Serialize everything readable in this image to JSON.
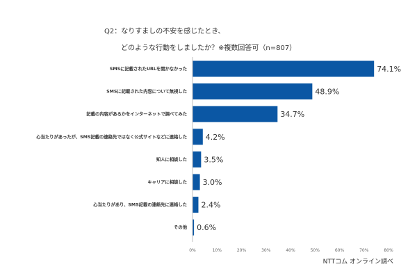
{
  "chart_data": {
    "type": "bar",
    "orientation": "horizontal",
    "title_lines": [
      "Q2：なりすましの不安を感じたとき、",
      "どのような行動をしましたか？※複数回答可（n=807）"
    ],
    "categories": [
      "SMSに記載されたURLを開かなかった",
      "SMSに記載された内容について無視した",
      "記載の内容があるかをインターネットで調べてみた",
      "心当たりがあったが、SMS記載の連絡先ではなく公式サイトなどに連絡した",
      "知人に相談した",
      "キャリアに相談した",
      "心当たりがあり、SMS記載の連絡先に連絡した",
      "その他"
    ],
    "values": [
      74.1,
      48.9,
      34.7,
      4.2,
      3.5,
      3.0,
      2.4,
      0.6
    ],
    "value_labels": [
      "74.1%",
      "48.9%",
      "34.7%",
      "4.2%",
      "3.5%",
      "3.0%",
      "2.4%",
      "0.6%"
    ],
    "xlim": [
      0,
      80
    ],
    "x_ticks": [
      "0%",
      "10%",
      "20%",
      "30%",
      "40%",
      "50%",
      "60%",
      "70%",
      "80%"
    ],
    "bar_color": "#0b57a4",
    "grid": false,
    "xlabel": "",
    "ylabel": "",
    "source": "NTTコム オンライン調べ"
  }
}
